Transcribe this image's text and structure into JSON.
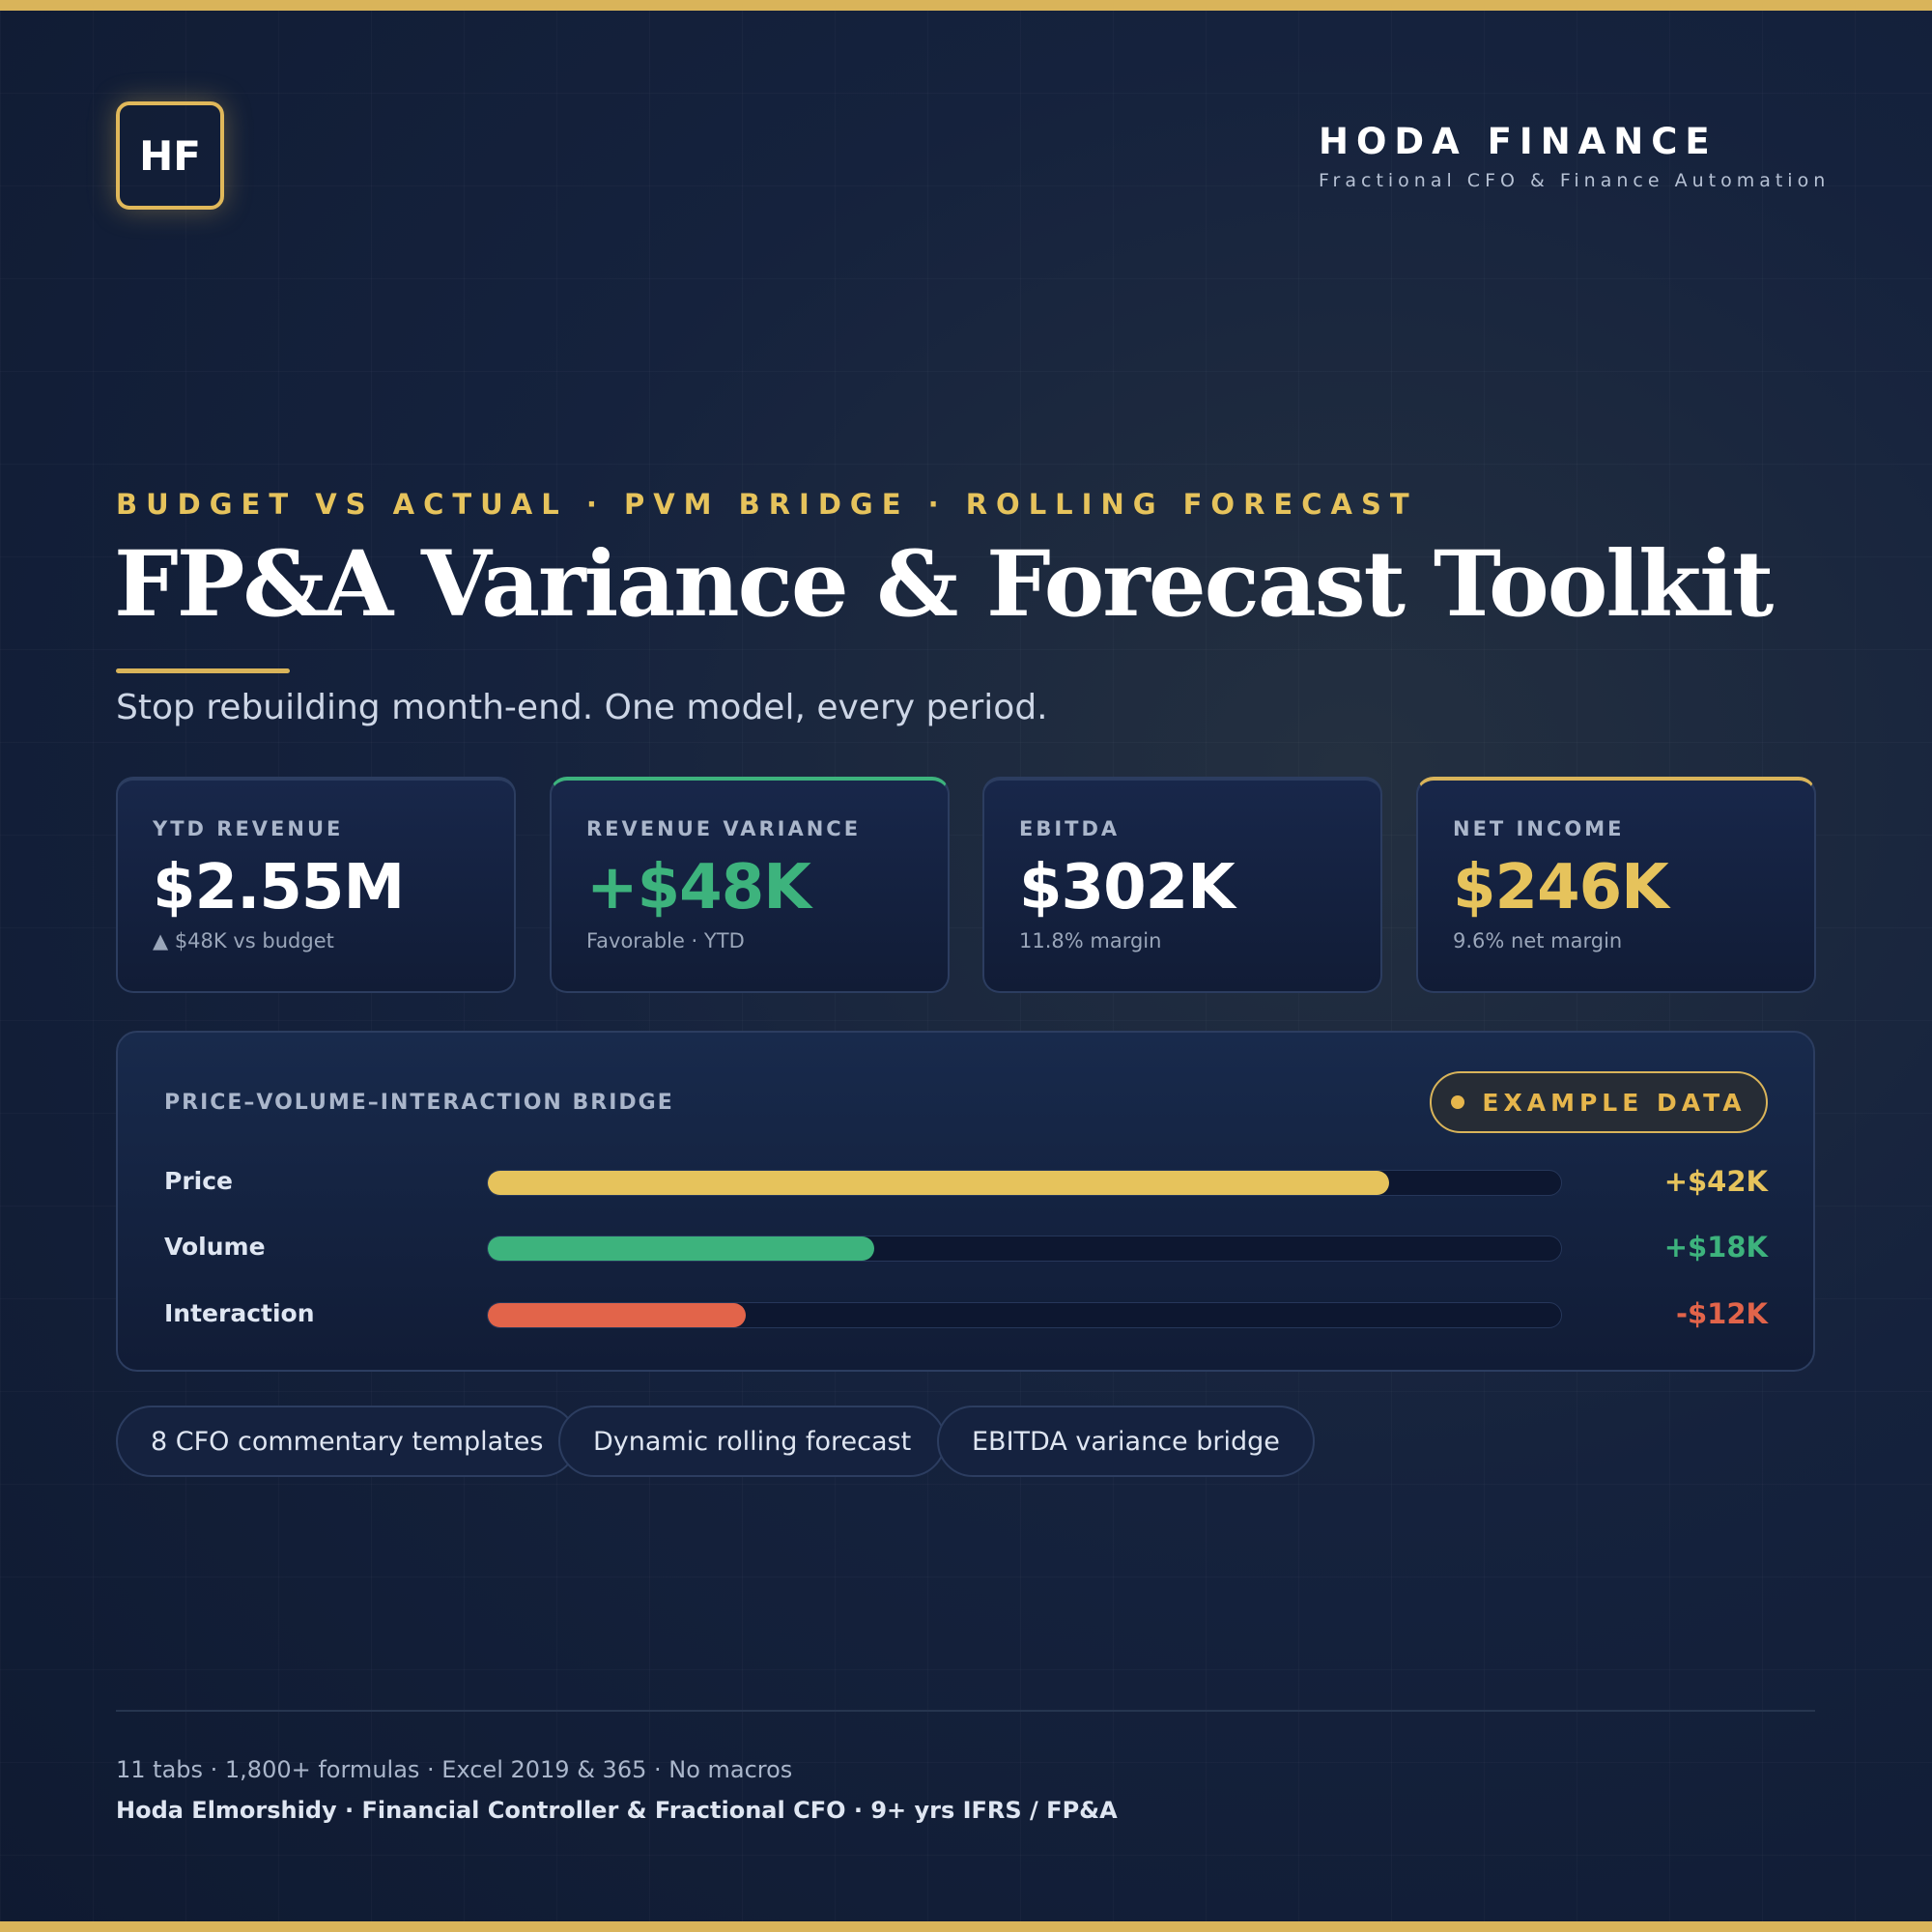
{
  "brand": {
    "logo": "HF",
    "name": "HODA FINANCE",
    "tagline": "Fractional CFO & Finance Automation"
  },
  "hero": {
    "eyebrow": "BUDGET VS ACTUAL · PVM BRIDGE · ROLLING FORECAST",
    "title": "FP&A Variance & Forecast Toolkit",
    "subtitle": "Stop rebuilding month-end. One model, every period."
  },
  "kpis": [
    {
      "label": "YTD REVENUE",
      "value": "$2.55M",
      "note": "▲ $48K vs budget"
    },
    {
      "label": "REVENUE VARIANCE",
      "value": "+$48K",
      "note": "Favorable · YTD"
    },
    {
      "label": "EBITDA",
      "value": "$302K",
      "note": "11.8% margin"
    },
    {
      "label": "NET INCOME",
      "value": "$246K",
      "note": "9.6% net margin"
    }
  ],
  "chart_data": {
    "type": "bar",
    "orientation": "horizontal",
    "title": "PRICE–VOLUME–INTERACTION BRIDGE",
    "badge": "EXAMPLE DATA",
    "categories": [
      "Price",
      "Volume",
      "Interaction"
    ],
    "values": [
      42,
      18,
      -12
    ],
    "value_labels": [
      "+$42K",
      "+$18K",
      "-$12K"
    ],
    "colors": [
      "#e6c35c",
      "#3db37d",
      "#e2644a"
    ],
    "xlim": [
      0,
      50
    ]
  },
  "features": [
    "8 CFO commentary templates",
    "Dynamic rolling forecast",
    "EBITDA variance bridge"
  ],
  "footer": {
    "specs": "11 tabs · 1,800+ formulas · Excel 2019 & 365 · No macros",
    "author": "Hoda Elmorshidy · Financial Controller & Fractional CFO · 9+ yrs IFRS / FP&A"
  }
}
